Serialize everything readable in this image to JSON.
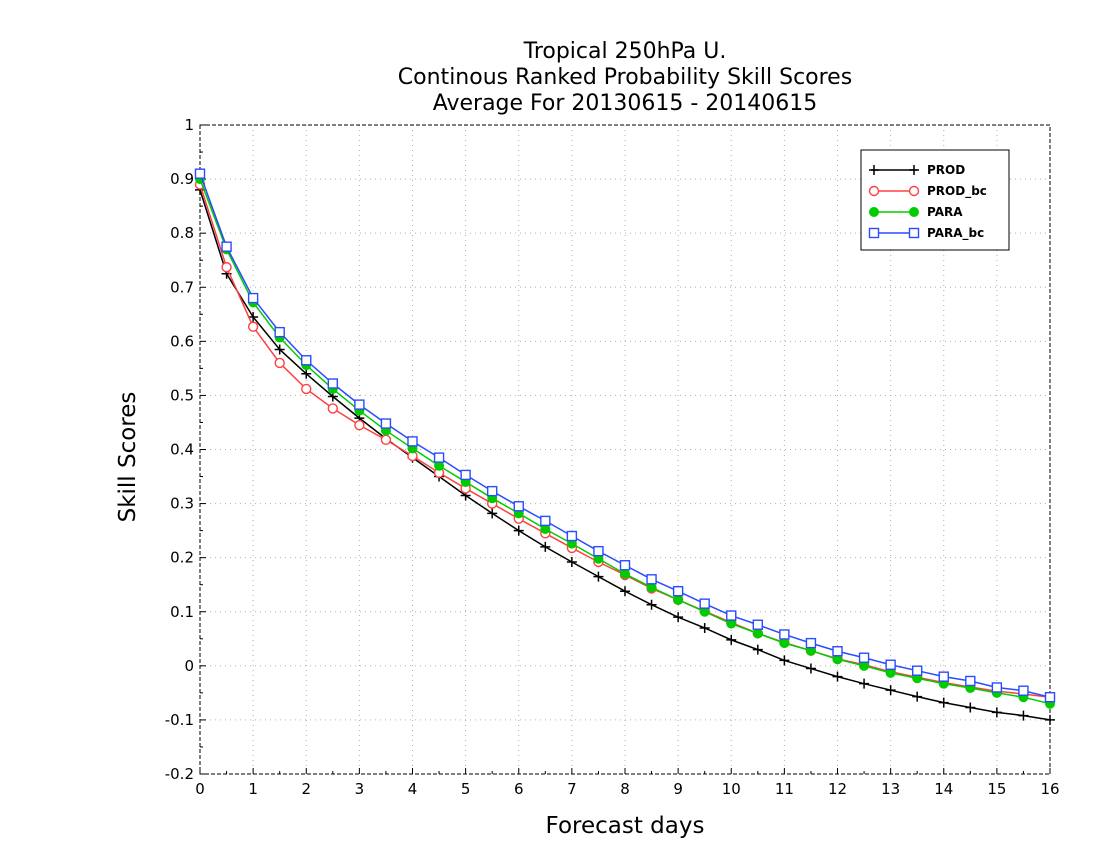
{
  "chart_data": {
    "type": "line",
    "title": [
      "Tropical 250hPa U.",
      "Continous Ranked Probability Skill Scores",
      "Average For 20130615 - 20140615"
    ],
    "xlabel": "Forecast days",
    "ylabel": "Skill Scores",
    "xlim": [
      0,
      16
    ],
    "ylim": [
      -0.2,
      1
    ],
    "xticks": [
      "0",
      "1",
      "2",
      "3",
      "4",
      "5",
      "6",
      "7",
      "8",
      "9",
      "10",
      "11",
      "12",
      "13",
      "14",
      "15",
      "16"
    ],
    "yticks": [
      "1",
      "0.9",
      "0.8",
      "0.7",
      "0.6",
      "0.5",
      "0.4",
      "0.3",
      "0.2",
      "0.1",
      "0",
      "-0.1",
      "-0.2"
    ],
    "grid": true,
    "legend_position": "top-right",
    "x": [
      0,
      0.5,
      1,
      1.5,
      2,
      2.5,
      3,
      3.5,
      4,
      4.5,
      5,
      5.5,
      6,
      6.5,
      7,
      7.5,
      8,
      8.5,
      9,
      9.5,
      10,
      10.5,
      11,
      11.5,
      12,
      12.5,
      13,
      13.5,
      14,
      14.5,
      15,
      15.5,
      16
    ],
    "series": [
      {
        "name": "PROD",
        "color": "#000000",
        "marker": "plus",
        "values": [
          0.88,
          0.725,
          0.645,
          0.585,
          0.54,
          0.498,
          0.458,
          0.42,
          0.385,
          0.35,
          0.315,
          0.282,
          0.25,
          0.22,
          0.192,
          0.165,
          0.138,
          0.113,
          0.09,
          0.07,
          0.048,
          0.03,
          0.01,
          -0.005,
          -0.02,
          -0.033,
          -0.045,
          -0.057,
          -0.068,
          -0.077,
          -0.086,
          -0.092,
          -0.1
        ]
      },
      {
        "name": "PROD_bc",
        "color": "#ff4040",
        "marker": "circle-open",
        "values": [
          0.89,
          0.737,
          0.627,
          0.56,
          0.512,
          0.476,
          0.445,
          0.418,
          0.388,
          0.357,
          0.328,
          0.3,
          0.272,
          0.245,
          0.218,
          0.192,
          0.168,
          0.143,
          0.122,
          0.101,
          0.08,
          0.06,
          0.043,
          0.028,
          0.013,
          0.002,
          -0.011,
          -0.021,
          -0.031,
          -0.039,
          -0.047,
          -0.052,
          -0.058
        ]
      },
      {
        "name": "PARA",
        "color": "#00cc00",
        "marker": "circle-filled",
        "values": [
          0.9,
          0.77,
          0.672,
          0.607,
          0.556,
          0.512,
          0.472,
          0.435,
          0.402,
          0.37,
          0.34,
          0.31,
          0.282,
          0.253,
          0.226,
          0.198,
          0.17,
          0.145,
          0.122,
          0.1,
          0.078,
          0.06,
          0.042,
          0.028,
          0.012,
          0.0,
          -0.013,
          -0.023,
          -0.033,
          -0.041,
          -0.05,
          -0.058,
          -0.07
        ]
      },
      {
        "name": "PARA_bc",
        "color": "#2a4cff",
        "marker": "square-open",
        "values": [
          0.91,
          0.775,
          0.68,
          0.617,
          0.565,
          0.522,
          0.483,
          0.448,
          0.415,
          0.385,
          0.353,
          0.323,
          0.295,
          0.268,
          0.24,
          0.212,
          0.186,
          0.16,
          0.138,
          0.115,
          0.093,
          0.076,
          0.058,
          0.042,
          0.027,
          0.015,
          0.002,
          -0.009,
          -0.02,
          -0.028,
          -0.04,
          -0.046,
          -0.058
        ]
      }
    ]
  }
}
